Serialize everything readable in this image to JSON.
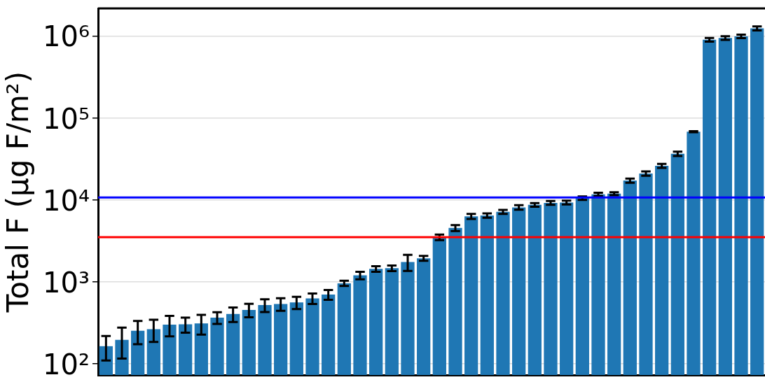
{
  "chart_data": {
    "type": "bar",
    "ylabel": "Total F (µg F/m²)",
    "categories": [
      null,
      null,
      null,
      null,
      null,
      null,
      null,
      null,
      null,
      null,
      null,
      null,
      null,
      null,
      null,
      null,
      null,
      null,
      null,
      null,
      null,
      null,
      null,
      null,
      null,
      null,
      null,
      null,
      null,
      null,
      null,
      null,
      null,
      null,
      null,
      null,
      null,
      null,
      null,
      null,
      null,
      null
    ],
    "values": [
      164,
      196,
      253,
      265,
      300,
      303,
      311,
      366,
      405,
      455,
      521,
      538,
      560,
      629,
      700,
      960,
      1200,
      1440,
      1470,
      1750,
      1940,
      3500,
      4550,
      6300,
      6450,
      7150,
      8100,
      8700,
      9200,
      9300,
      10500,
      11700,
      11900,
      17200,
      21000,
      26000,
      36500,
      68000,
      900000,
      946000,
      990000,
      1240000
    ],
    "errors": [
      54,
      80,
      80,
      80,
      84,
      63,
      84,
      60,
      82,
      85,
      92,
      94,
      95,
      93,
      95,
      70,
      125,
      115,
      115,
      390,
      135,
      275,
      380,
      450,
      400,
      400,
      530,
      450,
      500,
      500,
      500,
      500,
      500,
      1000,
      1300,
      1500,
      2200,
      1000,
      45000,
      48000,
      50000,
      70000
    ],
    "color": "#1f77b4",
    "log": true,
    "ylim": [
      73,
      2170000
    ],
    "yticks": [
      {
        "value": 100,
        "label": "10²"
      },
      {
        "value": 1000,
        "label": "10³"
      },
      {
        "value": 10000,
        "label": "10⁴"
      },
      {
        "value": 100000,
        "label": "10⁵"
      },
      {
        "value": 1000000,
        "label": "10⁶"
      }
    ],
    "grid": "y",
    "tick_labels": "y",
    "ref_lines": [
      {
        "axis": "y",
        "value": 10700,
        "color": "#0000ff"
      },
      {
        "axis": "y",
        "value": 3500,
        "color": "#ff0000"
      }
    ]
  }
}
